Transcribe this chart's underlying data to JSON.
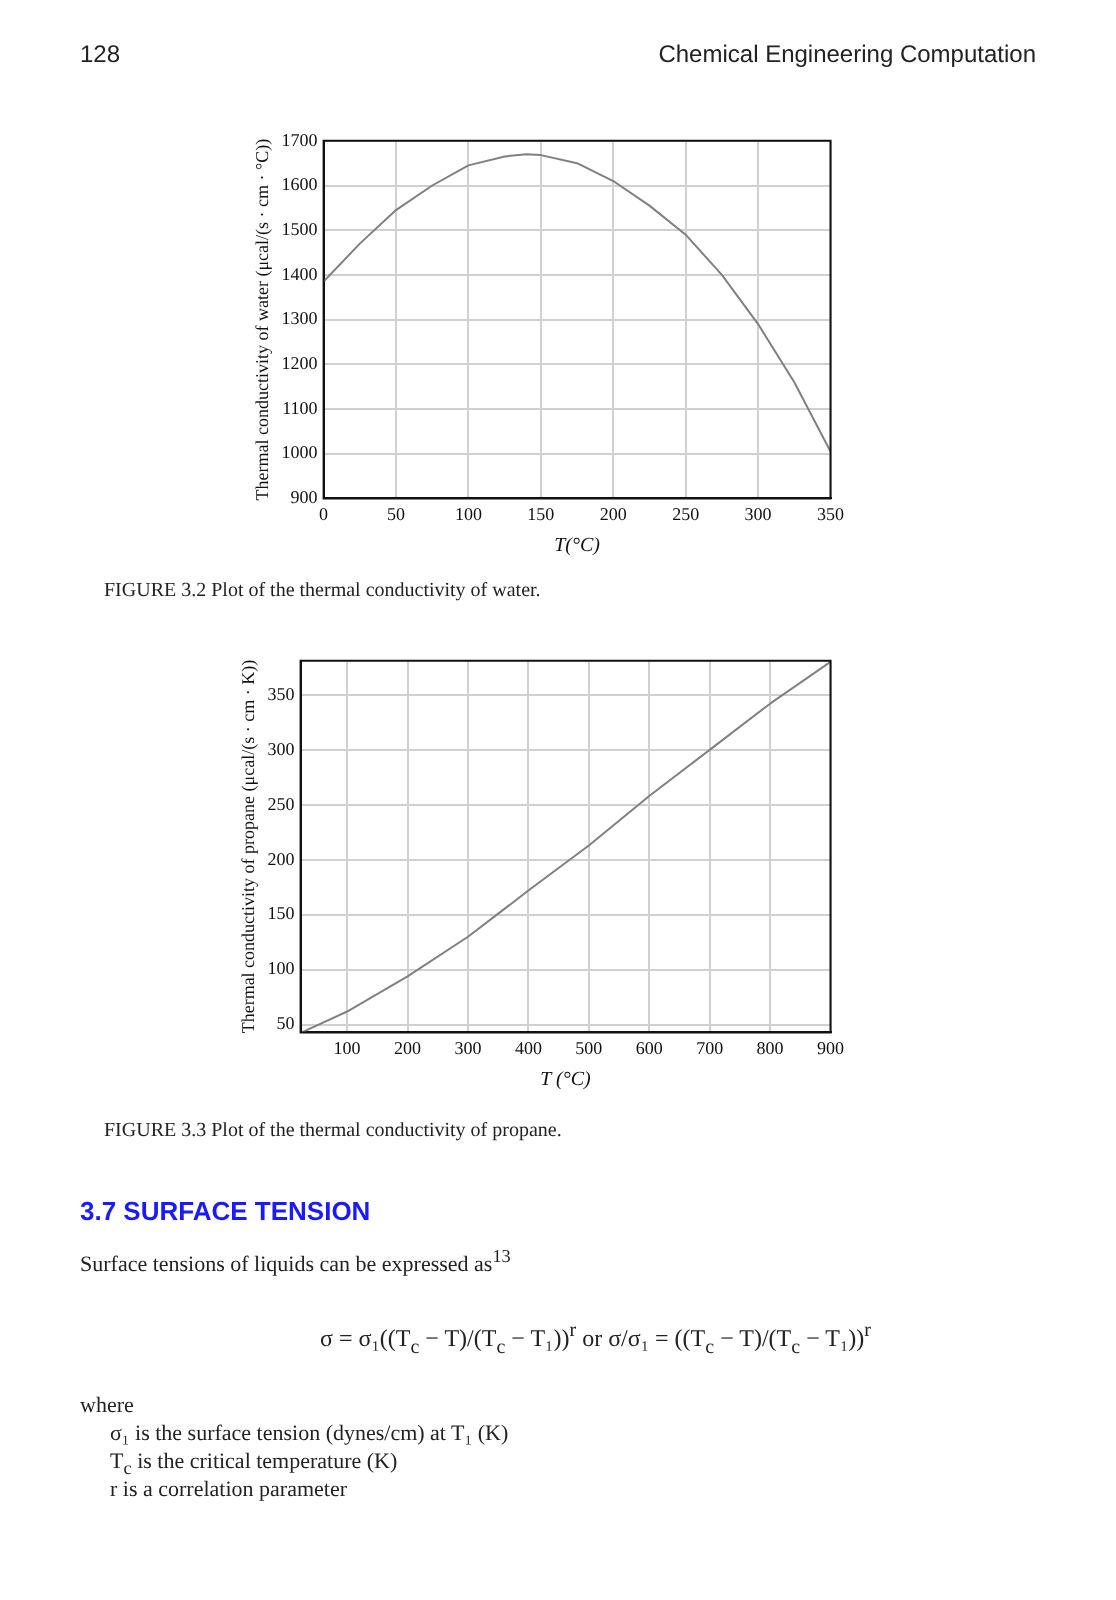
{
  "chart_data": [
    {
      "type": "line",
      "xlabel": "T(°C)",
      "ylabel": "Thermal conductivity of water (μcal/(s · cm · °C))",
      "x": [
        0,
        25,
        50,
        75,
        100,
        125,
        140,
        150,
        175,
        200,
        225,
        250,
        275,
        300,
        325,
        350
      ],
      "series": [
        {
          "color": "#808080",
          "values": [
            1385,
            1470,
            1545,
            1600,
            1645,
            1665,
            1670,
            1668,
            1650,
            1610,
            1555,
            1490,
            1400,
            1290,
            1160,
            1005
          ]
        }
      ],
      "xlim": [
        0,
        350
      ],
      "xticks": [
        0,
        50,
        100,
        150,
        200,
        250,
        300,
        350
      ],
      "ylim": [
        900,
        1700
      ],
      "yticks": [
        900,
        1000,
        1100,
        1200,
        1300,
        1400,
        1500,
        1600,
        1700
      ],
      "grid": true,
      "annotations": [
        "128",
        "Chemical Engineering Computation",
        "FIGURE 3.2    Plot of the thermal conductivity of water."
      ]
    },
    {
      "type": "line",
      "xlabel": "T (°C)",
      "ylabel": "Thermal conductivity of propane (μcal/(s · cm · K))",
      "x": [
        25,
        100,
        200,
        300,
        400,
        500,
        600,
        700,
        800,
        900
      ],
      "series": [
        {
          "color": "#808080",
          "values": [
            43,
            62,
            94,
            130,
            172,
            213,
            258,
            300,
            342,
            380
          ]
        }
      ],
      "xlim": [
        23,
        900
      ],
      "xticks": [
        100,
        200,
        300,
        400,
        500,
        600,
        700,
        800,
        900
      ],
      "ylim": [
        43,
        381
      ],
      "yticks": [
        50,
        100,
        150,
        200,
        250,
        300,
        350
      ],
      "grid": true,
      "annotations": [
        "FIGURE 3.3    Plot of the thermal conductivity of propane.",
        "3.7    SURFACE TENSION",
        "Surface tensions of liquids can be expressed as$^{13}$",
        "σ = σ₁((T$_{c}$ − T)/(T$_{c}$ − T₁))$^{r}$      or      σ/σ₁ = ((T$_{c}$ − T)/(T$_{c}$ − T₁))$^{r}$",
        "where",
        "σ₁ is the surface tension (dynes/cm) at T₁ (K)",
        "T$_{c}$ is the critical temperature (K)",
        "r is a correlation parameter"
      ]
    }
  ]
}
